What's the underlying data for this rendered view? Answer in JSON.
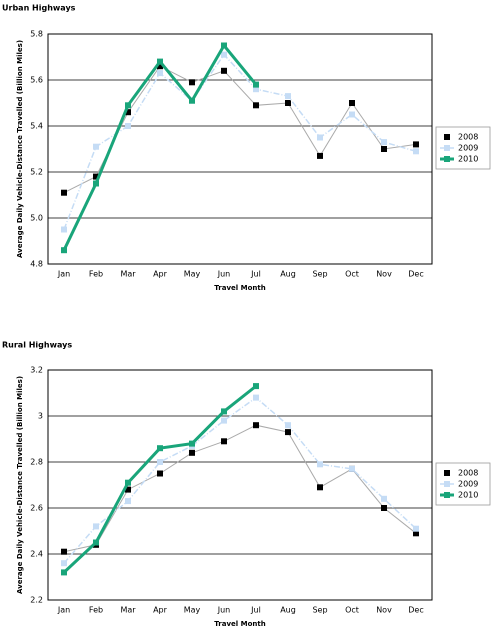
{
  "chart_data": [
    {
      "type": "line",
      "title": "Urban Highways",
      "x_label": "Travel Month",
      "y_label": "Average Daily Vehicle-Distance Travelled (Billion Miles)",
      "categories": [
        "Jan",
        "Feb",
        "Mar",
        "Apr",
        "May",
        "Jun",
        "Jul",
        "Aug",
        "Sep",
        "Oct",
        "Nov",
        "Dec"
      ],
      "series": [
        {
          "name": "2008",
          "color": "#000000",
          "values": [
            5.11,
            5.18,
            5.46,
            5.66,
            5.59,
            5.64,
            5.49,
            5.5,
            5.27,
            5.5,
            5.3,
            5.32
          ]
        },
        {
          "name": "2009",
          "color": "#c5dcf5",
          "values": [
            4.95,
            5.31,
            5.4,
            5.63,
            5.51,
            5.71,
            5.56,
            5.53,
            5.35,
            5.45,
            5.33,
            5.29
          ]
        },
        {
          "name": "2010",
          "color": "#19a57a",
          "values": [
            4.86,
            5.15,
            5.49,
            5.68,
            5.51,
            5.75,
            5.58,
            null,
            null,
            null,
            null,
            null
          ]
        }
      ],
      "ylim": [
        4.8,
        5.8
      ],
      "yticks": [
        4.8,
        {
          "value": 5,
          "label": "5.0"
        },
        5.2,
        5.4,
        5.6,
        5.8
      ],
      "grid": true,
      "legend": "right"
    },
    {
      "type": "line",
      "title": "Rural Highways",
      "x_label": "Travel Month",
      "y_label": "Average Daily Vehicle-Distance Travelled (Billion Miles)",
      "categories": [
        "Jan",
        "Feb",
        "Mar",
        "Apr",
        "May",
        "Jun",
        "Jul",
        "Aug",
        "Sep",
        "Oct",
        "Nov",
        "Dec"
      ],
      "series": [
        {
          "name": "2008",
          "color": "#000000",
          "values": [
            2.41,
            2.44,
            2.68,
            2.75,
            2.84,
            2.89,
            2.96,
            2.93,
            2.69,
            2.77,
            2.6,
            2.49
          ]
        },
        {
          "name": "2009",
          "color": "#c5dcf5",
          "values": [
            2.36,
            2.52,
            2.63,
            2.8,
            2.87,
            2.98,
            3.08,
            2.96,
            2.79,
            2.77,
            2.64,
            2.51
          ]
        },
        {
          "name": "2010",
          "color": "#19a57a",
          "values": [
            2.32,
            2.45,
            2.71,
            2.86,
            2.88,
            3.02,
            3.13,
            null,
            null,
            null,
            null,
            null
          ]
        }
      ],
      "ylim": [
        2.2,
        3.2
      ],
      "yticks": [
        2.2,
        2.4,
        2.6,
        2.8,
        3,
        3.2
      ],
      "grid": true,
      "legend": "right"
    }
  ]
}
